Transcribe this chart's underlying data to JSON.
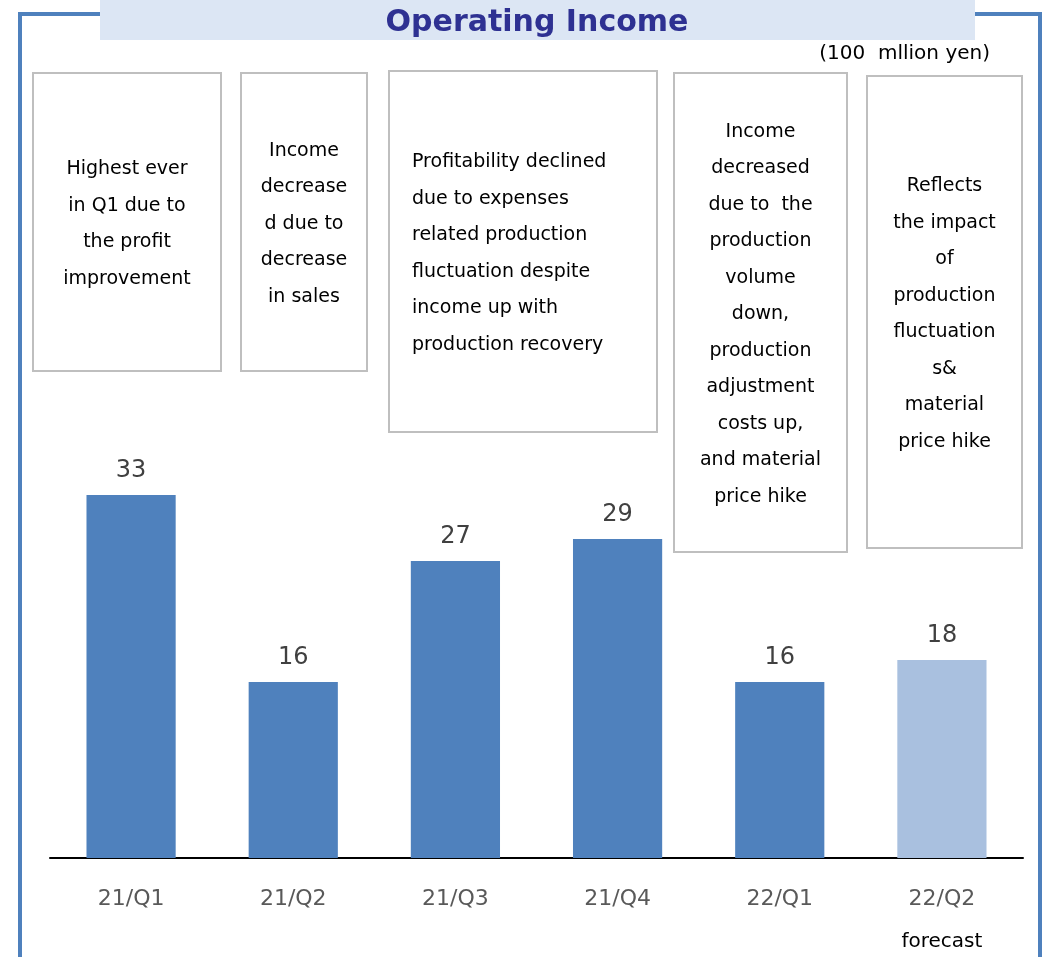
{
  "chart_data": {
    "type": "bar",
    "title": "Operating Income",
    "categories": [
      "21/Q1",
      "21/Q2",
      "21/Q3",
      "21/Q4",
      "22/Q1",
      "22/Q2"
    ],
    "values": [
      33,
      16,
      27,
      29,
      16,
      18
    ],
    "colors": [
      "#4f81bd",
      "#4f81bd",
      "#4f81bd",
      "#4f81bd",
      "#4f81bd",
      "#a9c0df"
    ],
    "data_labels": true,
    "annotations": [
      "(100  mllion yen)",
      "Highest ever\nin Q1 due to\nthe profit\nimprovement",
      "Income\ndecrease\nd due to\ndecrease\nin sales",
      "Profitability declined\ndue to expenses\nrelated production\nfluctuation despite\nincome up with\nproduction recovery",
      "Income\ndecreased\ndue to  the\nproduction\nvolume\ndown,\nproduction\nadjustment\ncosts up,\nand material\nprice hike",
      "Reflects\nthe impact\nof\nproduction\nfluctuation\ns&\nmaterial\nprice hike",
      "forecast"
    ]
  }
}
